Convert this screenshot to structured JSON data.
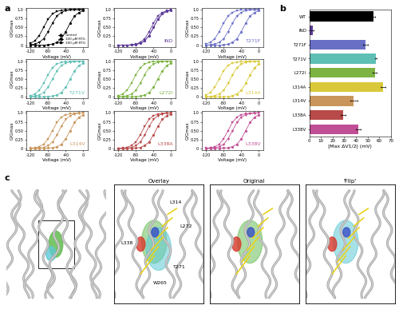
{
  "panel_labels": [
    "a",
    "b",
    "c"
  ],
  "chart_data": [
    {
      "type": "line",
      "legend": "lower right",
      "xlabel": "Voltage (mV)",
      "ylabel": "G/Gmax",
      "x": [
        -120,
        -110,
        -100,
        -90,
        -80,
        -70,
        -60,
        -50,
        -40,
        -30,
        -20,
        -10,
        0
      ],
      "xlim": [
        -130,
        10
      ],
      "xticks": [
        -120,
        -80,
        -40,
        0
      ],
      "ylim": [
        -0.05,
        1.05
      ],
      "yticks": [
        0,
        0.25,
        {
          "value": 0.5,
          "label": "0.50"
        },
        0.75,
        {
          "value": 1,
          "label": "1.0"
        }
      ],
      "series": [
        {
          "name": "Control",
          "color": "#000000",
          "marker": "circle",
          "values": [
            0,
            0,
            0,
            0,
            0.01,
            0.03,
            0.08,
            0.18,
            0.38,
            0.62,
            0.82,
            0.92,
            0.97
          ]
        },
        {
          "name": "100 µM RTG",
          "color": "#000000",
          "marker": "triangle_down",
          "values": [
            0.01,
            0.03,
            0.08,
            0.18,
            0.38,
            0.62,
            0.82,
            0.92,
            0.97,
            0.99,
            1,
            1,
            1
          ]
        },
        {
          "name": "300 µM RTG",
          "color": "#000000",
          "marker": "square",
          "values": [
            0.05,
            0.12,
            0.27,
            0.5,
            0.73,
            0.88,
            0.95,
            0.98,
            0.99,
            1,
            1,
            1,
            1
          ]
        }
      ]
    },
    {
      "type": "line",
      "annotation": "IND",
      "xlabel": "Voltage (mV)",
      "ylabel": "G/Gmax",
      "x": [
        -120,
        -110,
        -100,
        -90,
        -80,
        -70,
        -60,
        -50,
        -40,
        -30,
        -20,
        -10,
        0
      ],
      "xlim": [
        -130,
        10
      ],
      "xticks": [
        -120,
        -80,
        -40,
        0
      ],
      "ylim": [
        -0.05,
        1.05
      ],
      "yticks": [
        0,
        0.25,
        {
          "value": 0.5,
          "label": "0.50"
        },
        0.75,
        {
          "value": 1,
          "label": "1.0"
        }
      ],
      "series": [
        {
          "color": "#5e3c99",
          "marker": "circle",
          "values": [
            0,
            0,
            0,
            0.01,
            0.02,
            0.05,
            0.12,
            0.27,
            0.5,
            0.73,
            0.88,
            0.95,
            0.98
          ]
        },
        {
          "color": "#5e3c99",
          "marker": "triangle_down",
          "values": [
            0,
            0,
            0,
            0.01,
            0.02,
            0.05,
            0.12,
            0.27,
            0.5,
            0.73,
            0.88,
            0.95,
            0.98
          ]
        },
        {
          "color": "#5e3c99",
          "marker": "square",
          "values": [
            0,
            0,
            0,
            0.01,
            0.03,
            0.08,
            0.18,
            0.38,
            0.62,
            0.82,
            0.92,
            0.97,
            0.99
          ]
        }
      ]
    },
    {
      "type": "line",
      "annotation": "T271F",
      "xlabel": "Voltage (mV)",
      "ylabel": "G/Gmax",
      "x": [
        -120,
        -110,
        -100,
        -90,
        -80,
        -70,
        -60,
        -50,
        -40,
        -30,
        -20,
        -10,
        0
      ],
      "xlim": [
        -130,
        10
      ],
      "xticks": [
        -120,
        -80,
        -40,
        0
      ],
      "ylim": [
        -0.05,
        1.05
      ],
      "yticks": [
        0,
        0.25,
        {
          "value": 0.5,
          "label": "0.50"
        },
        0.75,
        {
          "value": 1,
          "label": "1.0"
        }
      ],
      "series": [
        {
          "color": "#6a6fc6",
          "marker": "circle",
          "values": [
            0,
            0,
            0,
            0,
            0.01,
            0.03,
            0.08,
            0.18,
            0.38,
            0.62,
            0.82,
            0.92,
            0.97
          ]
        },
        {
          "color": "#6a6fc6",
          "marker": "triangle_down",
          "values": [
            0,
            0.01,
            0.03,
            0.08,
            0.18,
            0.38,
            0.62,
            0.82,
            0.92,
            0.97,
            0.99,
            1,
            1
          ]
        },
        {
          "color": "#6a6fc6",
          "marker": "square",
          "values": [
            0.03,
            0.08,
            0.18,
            0.38,
            0.62,
            0.82,
            0.92,
            0.97,
            0.99,
            1,
            1,
            1,
            1
          ]
        }
      ]
    },
    {
      "type": "line",
      "annotation": "T271V",
      "xlabel": "Voltage (mV)",
      "ylabel": "G/Gmax",
      "x": [
        -120,
        -110,
        -100,
        -90,
        -80,
        -70,
        -60,
        -50,
        -40,
        -30,
        -20,
        -10,
        0
      ],
      "xlim": [
        -130,
        10
      ],
      "xticks": [
        -120,
        -80,
        -40,
        0
      ],
      "ylim": [
        -0.05,
        1.05
      ],
      "yticks": [
        0,
        0.25,
        {
          "value": 0.5,
          "label": "0.50"
        },
        0.75,
        {
          "value": 1,
          "label": "1.0"
        }
      ],
      "series": [
        {
          "color": "#5fbfb5",
          "marker": "circle",
          "values": [
            0,
            0,
            0,
            0,
            0.01,
            0.02,
            0.05,
            0.12,
            0.27,
            0.5,
            0.73,
            0.88,
            0.95
          ]
        },
        {
          "color": "#5fbfb5",
          "marker": "triangle_down",
          "values": [
            0.01,
            0.02,
            0.05,
            0.12,
            0.27,
            0.5,
            0.73,
            0.88,
            0.95,
            0.98,
            0.99,
            1,
            1
          ]
        },
        {
          "color": "#5fbfb5",
          "marker": "square",
          "values": [
            0.03,
            0.08,
            0.18,
            0.38,
            0.62,
            0.82,
            0.92,
            0.97,
            0.99,
            1,
            1,
            1,
            1
          ]
        }
      ]
    },
    {
      "type": "line",
      "annotation": "L272I",
      "xlabel": "Voltage (mV)",
      "ylabel": "G/Gmax",
      "x": [
        -120,
        -110,
        -100,
        -90,
        -80,
        -70,
        -60,
        -50,
        -40,
        -30,
        -20,
        -10,
        0
      ],
      "xlim": [
        -130,
        10
      ],
      "xticks": [
        -120,
        -80,
        -40,
        0
      ],
      "ylim": [
        -0.05,
        1.05
      ],
      "yticks": [
        0,
        0.25,
        {
          "value": 0.5,
          "label": "0.50"
        },
        0.75,
        {
          "value": 1,
          "label": "1.0"
        }
      ],
      "series": [
        {
          "color": "#7cb342",
          "marker": "circle",
          "values": [
            0,
            0,
            0,
            0,
            0.01,
            0.02,
            0.05,
            0.12,
            0.27,
            0.5,
            0.73,
            0.88,
            0.95
          ]
        },
        {
          "color": "#7cb342",
          "marker": "triangle_down",
          "values": [
            0,
            0.01,
            0.03,
            0.08,
            0.18,
            0.38,
            0.62,
            0.82,
            0.92,
            0.97,
            0.99,
            1,
            1
          ]
        },
        {
          "color": "#7cb342",
          "marker": "square",
          "values": [
            0.03,
            0.08,
            0.18,
            0.38,
            0.62,
            0.82,
            0.92,
            0.97,
            0.99,
            1,
            1,
            1,
            1
          ]
        }
      ]
    },
    {
      "type": "line",
      "annotation": "L314A",
      "xlabel": "Voltage (mV)",
      "ylabel": "G/Gmax",
      "x": [
        -120,
        -110,
        -100,
        -90,
        -80,
        -70,
        -60,
        -50,
        -40,
        -30,
        -20,
        -10,
        0
      ],
      "xlim": [
        -130,
        10
      ],
      "xticks": [
        -120,
        -80,
        -40,
        0
      ],
      "ylim": [
        -0.05,
        1.05
      ],
      "yticks": [
        0,
        0.25,
        {
          "value": 0.5,
          "label": "0.50"
        },
        0.75,
        {
          "value": 1,
          "label": "1.0"
        }
      ],
      "series": [
        {
          "color": "#d9c93a",
          "marker": "circle",
          "values": [
            0,
            0,
            0,
            0,
            0,
            0.01,
            0.03,
            0.08,
            0.18,
            0.38,
            0.62,
            0.82,
            0.92
          ]
        },
        {
          "color": "#d9c93a",
          "marker": "triangle_down",
          "values": [
            0,
            0.01,
            0.03,
            0.08,
            0.18,
            0.38,
            0.62,
            0.82,
            0.92,
            0.97,
            0.99,
            1,
            1
          ]
        },
        {
          "color": "#d9c93a",
          "marker": "square",
          "values": [
            0.05,
            0.12,
            0.27,
            0.5,
            0.73,
            0.88,
            0.95,
            0.98,
            0.99,
            1,
            1,
            1,
            1
          ]
        }
      ]
    },
    {
      "type": "line",
      "annotation": "L314V",
      "xlabel": "Voltage (mV)",
      "ylabel": "G/Gmax",
      "x": [
        -120,
        -110,
        -100,
        -90,
        -80,
        -70,
        -60,
        -50,
        -40,
        -30,
        -20,
        -10,
        0
      ],
      "xlim": [
        -130,
        10
      ],
      "xticks": [
        -120,
        -80,
        -40,
        0
      ],
      "ylim": [
        -0.05,
        1.05
      ],
      "yticks": [
        0,
        0.25,
        {
          "value": 0.5,
          "label": "0.50"
        },
        0.75,
        {
          "value": 1,
          "label": "1.0"
        }
      ],
      "series": [
        {
          "color": "#c9955a",
          "marker": "circle",
          "values": [
            0,
            0,
            0,
            0,
            0.01,
            0.02,
            0.05,
            0.12,
            0.27,
            0.5,
            0.73,
            0.88,
            0.95
          ]
        },
        {
          "color": "#c9955a",
          "marker": "triangle_down",
          "values": [
            0,
            0,
            0.01,
            0.03,
            0.08,
            0.18,
            0.38,
            0.62,
            0.82,
            0.92,
            0.97,
            0.99,
            1
          ]
        },
        {
          "color": "#c9955a",
          "marker": "square",
          "values": [
            0.01,
            0.02,
            0.05,
            0.12,
            0.27,
            0.5,
            0.73,
            0.88,
            0.95,
            0.98,
            0.99,
            1,
            1
          ]
        }
      ]
    },
    {
      "type": "line",
      "annotation": "L338A",
      "xlabel": "Voltage (mV)",
      "ylabel": "G/Gmax",
      "x": [
        -120,
        -110,
        -100,
        -90,
        -80,
        -70,
        -60,
        -50,
        -40,
        -30,
        -20,
        -10,
        0
      ],
      "xlim": [
        -130,
        10
      ],
      "xticks": [
        -120,
        -80,
        -40,
        0
      ],
      "ylim": [
        -0.05,
        1.05
      ],
      "yticks": [
        0,
        0.25,
        {
          "value": 0.5,
          "label": "0.50"
        },
        0.75,
        {
          "value": 1,
          "label": "1.0"
        }
      ],
      "series": [
        {
          "color": "#b84a4a",
          "marker": "circle",
          "values": [
            0,
            0,
            0,
            0,
            0.01,
            0.03,
            0.08,
            0.18,
            0.38,
            0.62,
            0.82,
            0.92,
            0.97
          ]
        },
        {
          "color": "#b84a4a",
          "marker": "triangle_down",
          "values": [
            0,
            0,
            0.01,
            0.03,
            0.08,
            0.18,
            0.38,
            0.62,
            0.82,
            0.92,
            0.97,
            0.99,
            1
          ]
        },
        {
          "color": "#b84a4a",
          "marker": "square",
          "values": [
            0,
            0.01,
            0.03,
            0.08,
            0.18,
            0.38,
            0.62,
            0.82,
            0.92,
            0.97,
            0.99,
            1,
            1
          ]
        }
      ]
    },
    {
      "type": "line",
      "annotation": "L338V",
      "xlabel": "Voltage (mV)",
      "ylabel": "G/Gmax",
      "x": [
        -120,
        -110,
        -100,
        -90,
        -80,
        -70,
        -60,
        -50,
        -40,
        -30,
        -20,
        -10,
        0
      ],
      "xlim": [
        -130,
        10
      ],
      "xticks": [
        -120,
        -80,
        -40,
        0
      ],
      "ylim": [
        -0.05,
        1.05
      ],
      "yticks": [
        0,
        0.25,
        {
          "value": 0.5,
          "label": "0.50"
        },
        0.75,
        {
          "value": 1,
          "label": "1.0"
        }
      ],
      "series": [
        {
          "color": "#c04f95",
          "marker": "circle",
          "values": [
            0,
            0,
            0,
            0,
            0.01,
            0.02,
            0.05,
            0.12,
            0.27,
            0.5,
            0.73,
            0.88,
            0.95
          ]
        },
        {
          "color": "#c04f95",
          "marker": "triangle_down",
          "values": [
            0,
            0.01,
            0.02,
            0.05,
            0.12,
            0.27,
            0.5,
            0.73,
            0.88,
            0.95,
            0.98,
            0.99,
            1
          ]
        },
        {
          "color": "#c04f95",
          "marker": "square",
          "values": [
            0.01,
            0.02,
            0.05,
            0.12,
            0.27,
            0.5,
            0.73,
            0.88,
            0.95,
            0.98,
            0.99,
            1,
            1
          ]
        }
      ]
    },
    {
      "type": "bar",
      "orientation": "horizontal",
      "xlabel": "|Max ΔV1/2| (mV)",
      "categories": [
        "WT",
        "IND",
        "T271F",
        "T271V",
        "L272I",
        "L314A",
        "L314V",
        "L338A",
        "L338V"
      ],
      "values": [
        55,
        3,
        48,
        57,
        56,
        63,
        38,
        29,
        42
      ],
      "errors": [
        1,
        1,
        2,
        1,
        2,
        2,
        3,
        2,
        2
      ],
      "colors": [
        "#000000",
        "#5e3c99",
        "#6a6fc6",
        "#5fbfb5",
        "#7cb342",
        "#d9c93a",
        "#c9955a",
        "#b84a4a",
        "#c04f95"
      ],
      "xlim": [
        0,
        70
      ],
      "xticks": [
        0,
        10,
        20,
        30,
        40,
        50,
        60,
        70
      ]
    }
  ],
  "structure": {
    "views": [
      "Overlay",
      "Original",
      "'Flip'"
    ],
    "residues": [
      "L314",
      "L272",
      "L338",
      "T271",
      "W265"
    ]
  }
}
